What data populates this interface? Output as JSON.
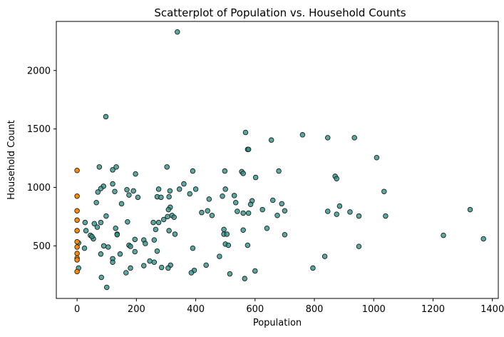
{
  "chart_data": {
    "type": "scatter",
    "title": "Scatterplot of Population vs. Household Counts",
    "xlabel": "Population",
    "ylabel": "Household Count",
    "xlim": [
      -70,
      1420
    ],
    "ylim": [
      50,
      2420
    ],
    "x_ticks": [
      0,
      200,
      400,
      600,
      800,
      1000,
      1200,
      1400
    ],
    "y_ticks": [
      500,
      1000,
      1500,
      2000
    ],
    "grid": false,
    "legend": "none",
    "colors": {
      "teal": "#2a9088",
      "orange": "#ff8c00",
      "edge": "#1f1f1f"
    },
    "series": [
      {
        "color_key": "teal",
        "points": [
          [
            338,
            2330
          ],
          [
            97,
            1605
          ],
          [
            568,
            1470
          ],
          [
            760,
            1450
          ],
          [
            845,
            1425
          ],
          [
            935,
            1425
          ],
          [
            655,
            1405
          ],
          [
            575,
            1325
          ],
          [
            578,
            1325
          ],
          [
            1010,
            1255
          ],
          [
            303,
            1175
          ],
          [
            75,
            1175
          ],
          [
            132,
            1175
          ],
          [
            120,
            1150
          ],
          [
            390,
            1140
          ],
          [
            498,
            1140
          ],
          [
            555,
            1135
          ],
          [
            680,
            1140
          ],
          [
            560,
            1120
          ],
          [
            197,
            1115
          ],
          [
            870,
            1095
          ],
          [
            602,
            1085
          ],
          [
            875,
            1075
          ],
          [
            360,
            1030
          ],
          [
            120,
            1030
          ],
          [
            89,
            1010
          ],
          [
            80,
            990
          ],
          [
            168,
            980
          ],
          [
            275,
            985
          ],
          [
            345,
            985
          ],
          [
            400,
            985
          ],
          [
            500,
            985
          ],
          [
            313,
            970
          ],
          [
            190,
            970
          ],
          [
            127,
            965
          ],
          [
            70,
            960
          ],
          [
            1035,
            965
          ],
          [
            380,
            945
          ],
          [
            175,
            935
          ],
          [
            270,
            920
          ],
          [
            310,
            920
          ],
          [
            445,
            900
          ],
          [
            490,
            925
          ],
          [
            530,
            930
          ],
          [
            283,
            915
          ],
          [
            205,
            915
          ],
          [
            590,
            885
          ],
          [
            660,
            890
          ],
          [
            690,
            860
          ],
          [
            150,
            860
          ],
          [
            535,
            870
          ],
          [
            585,
            855
          ],
          [
            65,
            870
          ],
          [
            885,
            840
          ],
          [
            314,
            830
          ],
          [
            308,
            810
          ],
          [
            625,
            810
          ],
          [
            440,
            800
          ],
          [
            700,
            800
          ],
          [
            540,
            795
          ],
          [
            845,
            795
          ],
          [
            920,
            790
          ],
          [
            420,
            785
          ],
          [
            560,
            780
          ],
          [
            578,
            780
          ],
          [
            875,
            770
          ],
          [
            320,
            760
          ],
          [
            950,
            755
          ],
          [
            1040,
            755
          ],
          [
            455,
            760
          ],
          [
            675,
            760
          ],
          [
            98,
            755
          ],
          [
            305,
            750
          ],
          [
            327,
            745
          ],
          [
            170,
            705
          ],
          [
            275,
            700
          ],
          [
            257,
            700
          ],
          [
            292,
            725
          ],
          [
            80,
            700
          ],
          [
            58,
            690
          ],
          [
            27,
            700
          ],
          [
            640,
            650
          ],
          [
            130,
            650
          ],
          [
            495,
            640
          ],
          [
            265,
            640
          ],
          [
            310,
            630
          ],
          [
            560,
            635
          ],
          [
            30,
            630
          ],
          [
            68,
            660
          ],
          [
            495,
            600
          ],
          [
            505,
            600
          ],
          [
            330,
            600
          ],
          [
            135,
            600
          ],
          [
            700,
            595
          ],
          [
            135,
            595
          ],
          [
            45,
            590
          ],
          [
            55,
            560
          ],
          [
            195,
            555
          ],
          [
            260,
            550
          ],
          [
            225,
            550
          ],
          [
            50,
            580
          ],
          [
            5,
            525
          ],
          [
            230,
            520
          ],
          [
            500,
            515
          ],
          [
            510,
            505
          ],
          [
            575,
            505
          ],
          [
            175,
            505
          ],
          [
            180,
            495
          ],
          [
            90,
            500
          ],
          [
            105,
            490
          ],
          [
            950,
            495
          ],
          [
            390,
            480
          ],
          [
            25,
            480
          ],
          [
            270,
            455
          ],
          [
            195,
            450
          ],
          [
            145,
            430
          ],
          [
            80,
            430
          ],
          [
            480,
            410
          ],
          [
            835,
            410
          ],
          [
            120,
            390
          ],
          [
            260,
            360
          ],
          [
            245,
            370
          ],
          [
            120,
            360
          ],
          [
            435,
            335
          ],
          [
            225,
            330
          ],
          [
            315,
            335
          ],
          [
            285,
            315
          ],
          [
            307,
            310
          ],
          [
            180,
            310
          ],
          [
            795,
            310
          ],
          [
            5,
            310
          ],
          [
            395,
            290
          ],
          [
            600,
            285
          ],
          [
            385,
            270
          ],
          [
            165,
            270
          ],
          [
            515,
            260
          ],
          [
            565,
            220
          ],
          [
            82,
            230
          ],
          [
            100,
            145
          ],
          [
            1235,
            590
          ],
          [
            1325,
            810
          ],
          [
            1370,
            560
          ]
        ]
      },
      {
        "color_key": "orange",
        "points": [
          [
            0,
            1145
          ],
          [
            0,
            925
          ],
          [
            0,
            800
          ],
          [
            0,
            720
          ],
          [
            0,
            630
          ],
          [
            0,
            535
          ],
          [
            0,
            490
          ],
          [
            0,
            435
          ],
          [
            0,
            395
          ],
          [
            0,
            380
          ],
          [
            0,
            280
          ]
        ]
      }
    ]
  }
}
